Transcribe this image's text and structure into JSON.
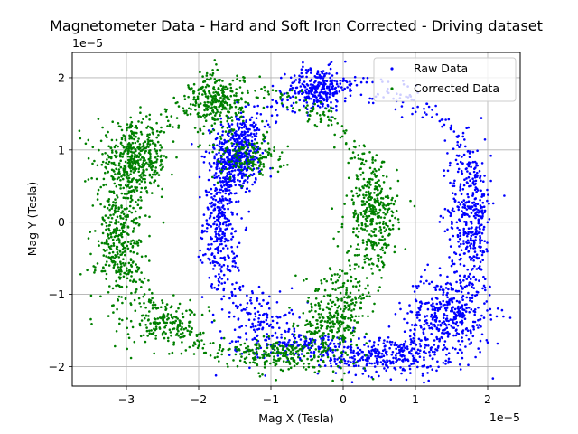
{
  "chart_data": {
    "type": "scatter",
    "title": "Magnetometer Data - Hard and Soft Iron Corrected - Driving dataset",
    "xlabel": "Mag X (Tesla)",
    "ylabel": "Mag Y (Tesla)",
    "x_offset_label": "1e−5",
    "y_offset_label": "1e−5",
    "unit_scale": 1e-05,
    "xlim": [
      -3.75e-05,
      2.45e-05
    ],
    "ylim": [
      -2.27e-05,
      2.35e-05
    ],
    "x_ticks": [
      -3e-05,
      -2e-05,
      -1e-05,
      0,
      1e-05,
      2e-05
    ],
    "y_ticks": [
      -2e-05,
      -1e-05,
      0,
      1e-05,
      2e-05
    ],
    "x_tick_labels": [
      "−3",
      "−2",
      "−1",
      "0",
      "1",
      "2"
    ],
    "y_tick_labels": [
      "−2",
      "−1",
      "0",
      "1",
      "2"
    ],
    "grid": true,
    "legend_position": "top-right",
    "series": [
      {
        "name": "Raw Data",
        "color": "#0000ff",
        "clusters": [
          {
            "cx": -1.45e-05,
            "cy": 9.5e-06,
            "sx": 1.6e-06,
            "sy": 2.8e-06,
            "n": 420
          },
          {
            "cx": -1.7e-05,
            "cy": 0.0,
            "sx": 1.2e-06,
            "sy": 5.5e-06,
            "n": 300
          },
          {
            "cx": -3.5e-06,
            "cy": 1.85e-05,
            "sx": 2e-06,
            "sy": 1.5e-06,
            "n": 260
          },
          {
            "cx": 1.75e-05,
            "cy": 1.5e-06,
            "sx": 1.5e-06,
            "sy": 5e-06,
            "n": 320
          },
          {
            "cx": 1.45e-05,
            "cy": -1.3e-05,
            "sx": 3e-06,
            "sy": 3e-06,
            "n": 380
          },
          {
            "cx": 6e-06,
            "cy": -1.85e-05,
            "sx": 4e-06,
            "sy": 1.4e-06,
            "n": 260
          },
          {
            "cx": -1.1e-05,
            "cy": -1.4e-05,
            "sx": 2.5e-06,
            "sy": 2.5e-06,
            "n": 120
          },
          {
            "cx": -5e-06,
            "cy": -1.7e-05,
            "sx": 4e-06,
            "sy": 8e-07,
            "n": 90
          }
        ],
        "arc": {
          "cx": 1e-06,
          "cy": 0.0,
          "rx": 1.8e-05,
          "ry": 1.9e-05,
          "n": 500,
          "jitter": 1e-06
        }
      },
      {
        "name": "Corrected Data",
        "color": "#008000",
        "clusters": [
          {
            "cx": -2.9e-05,
            "cy": 8.5e-06,
            "sx": 2.5e-06,
            "sy": 2.5e-06,
            "n": 420
          },
          {
            "cx": -3.1e-05,
            "cy": -3e-06,
            "sx": 1.6e-06,
            "sy": 4.5e-06,
            "n": 320
          },
          {
            "cx": -1.75e-05,
            "cy": 1.65e-05,
            "sx": 1.8e-06,
            "sy": 2.2e-06,
            "n": 260
          },
          {
            "cx": 4e-06,
            "cy": 1e-06,
            "sx": 1.8e-06,
            "sy": 3.5e-06,
            "n": 300
          },
          {
            "cx": -1e-06,
            "cy": -1.3e-05,
            "sx": 2.2e-06,
            "sy": 3.5e-06,
            "n": 280
          },
          {
            "cx": -2.4e-05,
            "cy": -1.4e-05,
            "sx": 2.5e-06,
            "sy": 1.5e-06,
            "n": 160
          },
          {
            "cx": -1.3e-05,
            "cy": 9e-06,
            "sx": 2.5e-06,
            "sy": 1.5e-06,
            "n": 140
          },
          {
            "cx": -9e-06,
            "cy": -1.85e-05,
            "sx": 3e-06,
            "sy": 1.2e-06,
            "n": 160
          }
        ],
        "arc": {
          "cx": -1.3e-05,
          "cy": 0.0,
          "rx": 1.8e-05,
          "ry": 1.8e-05,
          "n": 500,
          "jitter": 1e-06
        }
      }
    ]
  }
}
